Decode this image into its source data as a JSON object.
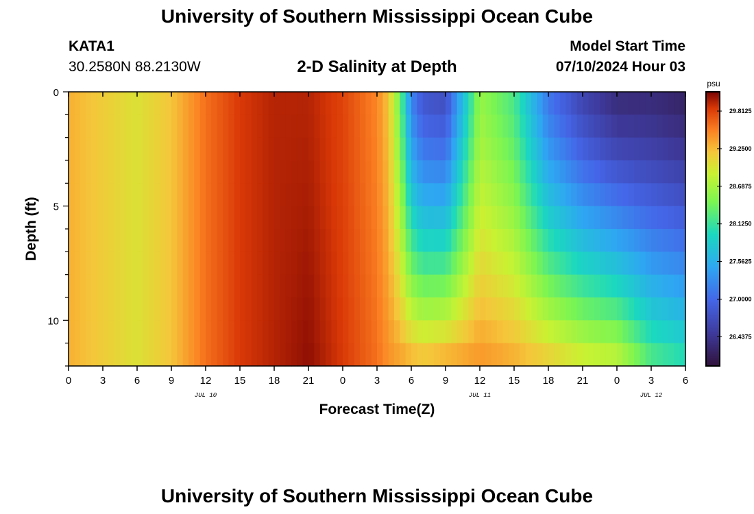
{
  "page": {
    "title": "University of Southern Mississippi Ocean Cube",
    "footer_title": "University of Southern Mississippi Ocean Cube",
    "station_id": "KATA1",
    "coords": "30.2580N  88.2130W",
    "subtitle": "2-D Salinity at Depth",
    "model_label": "Model Start Time",
    "model_time": "07/10/2024 Hour 03"
  },
  "chart_data": {
    "type": "heatmap",
    "title": "2-D Salinity at Depth",
    "xlabel": "Forecast Time(Z)",
    "ylabel": "Depth (ft)",
    "x_tick_labels": [
      "0",
      "3",
      "6",
      "9",
      "12",
      "15",
      "18",
      "21",
      "0",
      "3",
      "6",
      "9",
      "12",
      "15",
      "18",
      "21",
      "0",
      "3",
      "6"
    ],
    "x_range_hours": [
      0,
      54
    ],
    "date_labels": [
      {
        "label": "JUL 10",
        "hour": 12
      },
      {
        "label": "JUL 11",
        "hour": 36
      },
      {
        "label": "JUL 12",
        "hour": 51
      }
    ],
    "y_tick_labels": [
      "0",
      "5",
      "10"
    ],
    "y_tick_values": [
      0,
      5,
      10
    ],
    "y_range": [
      0,
      12
    ],
    "depth_layers": [
      0,
      1,
      2,
      3,
      4,
      5,
      6,
      7,
      8,
      9,
      10,
      11,
      12
    ],
    "colorbar": {
      "unit": "psu",
      "range": [
        26.0,
        30.1
      ],
      "tick_labels": [
        "29.8125",
        "29.2500",
        "28.6875",
        "28.1250",
        "27.5625",
        "27.0000",
        "26.4375"
      ],
      "tick_values": [
        29.8125,
        29.25,
        28.6875,
        28.125,
        27.5625,
        27.0,
        26.4375
      ]
    },
    "salinity_profile": {
      "hours": [
        0,
        3,
        6,
        9,
        12,
        15,
        18,
        21,
        24,
        27,
        28,
        29,
        30,
        31,
        33,
        36,
        39,
        42,
        45,
        48,
        51,
        54
      ],
      "surface_psu": [
        29.3,
        29.15,
        29.0,
        29.2,
        29.6,
        29.85,
        29.95,
        29.95,
        29.8,
        29.5,
        29.2,
        28.4,
        27.2,
        26.8,
        26.7,
        28.6,
        28.2,
        27.1,
        26.6,
        26.3,
        26.3,
        26.2
      ],
      "bottom_psu": [
        29.3,
        29.15,
        29.0,
        29.2,
        29.6,
        29.85,
        29.95,
        30.05,
        29.85,
        29.6,
        29.45,
        29.4,
        29.35,
        29.3,
        29.4,
        29.45,
        29.35,
        29.2,
        29.0,
        28.9,
        28.3,
        28.1
      ]
    }
  }
}
